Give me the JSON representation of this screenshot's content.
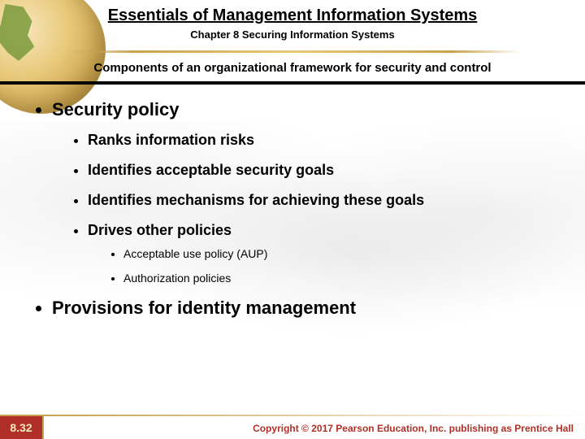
{
  "header": {
    "title": "Essentials of Management Information Systems",
    "chapter": "Chapter 8 Securing Information Systems",
    "section": "Components of an organizational framework for security and control"
  },
  "bullets": {
    "l1a": "Security policy",
    "l2a": "Ranks information risks",
    "l2b": "Identifies acceptable security goals",
    "l2c": "Identifies mechanisms for achieving these goals",
    "l2d": "Drives other policies",
    "l3a": "Acceptable use policy (AUP)",
    "l3b": "Authorization policies",
    "l1b": "Provisions for identity management"
  },
  "footer": {
    "page": "8.32",
    "copyright": "Copyright © 2017 Pearson Education, Inc. publishing as Prentice Hall"
  },
  "colors": {
    "accent_gold": "#c9a24d",
    "accent_red": "#b03028",
    "text": "#000000",
    "bg": "#ffffff"
  }
}
